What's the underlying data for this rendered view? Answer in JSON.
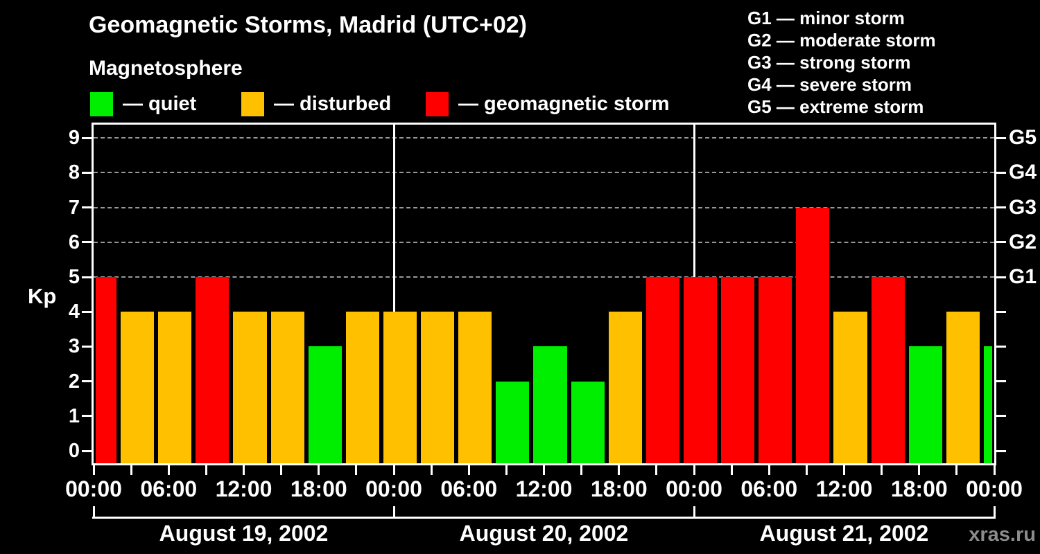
{
  "header": {
    "title": "Geomagnetic Storms, Madrid (UTC+02)",
    "watermark": "xras.ru"
  },
  "legend": {
    "heading": "Magnetosphere",
    "items": [
      {
        "name": "quiet",
        "label": "— quiet",
        "color": "#00ee00"
      },
      {
        "name": "disturbed",
        "label": "— disturbed",
        "color": "#ffc000"
      },
      {
        "name": "storm",
        "label": "— geomagnetic storm",
        "color": "#ff0000"
      }
    ]
  },
  "g_scale_legend": [
    "G1 — minor storm",
    "G2 — moderate storm",
    "G3 — strong storm",
    "G4 — severe storm",
    "G5 — extreme storm"
  ],
  "chart_data": {
    "type": "bar",
    "title": "Geomagnetic Storms, Madrid (UTC+02)",
    "ylabel": "Kp",
    "ylim": [
      0,
      9
    ],
    "yticks": [
      0,
      1,
      2,
      3,
      4,
      5,
      6,
      7,
      8,
      9
    ],
    "grid_kp_levels": [
      5,
      6,
      7,
      8,
      9
    ],
    "grid_style": "dashed",
    "right_axis": {
      "labels": [
        "G1",
        "G2",
        "G3",
        "G4",
        "G5"
      ],
      "kp_levels": [
        5,
        6,
        7,
        8,
        9
      ]
    },
    "x_axis": {
      "hours_span": 72,
      "tick_interval_hours": 3,
      "label_interval_hours": 6,
      "time_labels": [
        "00:00",
        "06:00",
        "12:00",
        "18:00",
        "00:00",
        "06:00",
        "12:00",
        "18:00",
        "00:00",
        "06:00",
        "12:00",
        "18:00",
        "00:00"
      ]
    },
    "days": [
      {
        "label": "August 19, 2002",
        "start_hour": 0
      },
      {
        "label": "August 20, 2002",
        "start_hour": 24
      },
      {
        "label": "August 21, 2002",
        "start_hour": 48
      }
    ],
    "bars": [
      {
        "start_hour": 0,
        "end_hour": 2,
        "kp": 5,
        "status": "storm"
      },
      {
        "start_hour": 2,
        "end_hour": 5,
        "kp": 4,
        "status": "disturbed"
      },
      {
        "start_hour": 5,
        "end_hour": 8,
        "kp": 4,
        "status": "disturbed"
      },
      {
        "start_hour": 8,
        "end_hour": 11,
        "kp": 5,
        "status": "storm"
      },
      {
        "start_hour": 11,
        "end_hour": 14,
        "kp": 4,
        "status": "disturbed"
      },
      {
        "start_hour": 14,
        "end_hour": 17,
        "kp": 4,
        "status": "disturbed"
      },
      {
        "start_hour": 17,
        "end_hour": 20,
        "kp": 3,
        "status": "quiet"
      },
      {
        "start_hour": 20,
        "end_hour": 23,
        "kp": 4,
        "status": "disturbed"
      },
      {
        "start_hour": 23,
        "end_hour": 26,
        "kp": 4,
        "status": "disturbed"
      },
      {
        "start_hour": 26,
        "end_hour": 29,
        "kp": 4,
        "status": "disturbed"
      },
      {
        "start_hour": 29,
        "end_hour": 32,
        "kp": 4,
        "status": "disturbed"
      },
      {
        "start_hour": 32,
        "end_hour": 35,
        "kp": 2,
        "status": "quiet"
      },
      {
        "start_hour": 35,
        "end_hour": 38,
        "kp": 3,
        "status": "quiet"
      },
      {
        "start_hour": 38,
        "end_hour": 41,
        "kp": 2,
        "status": "quiet"
      },
      {
        "start_hour": 41,
        "end_hour": 44,
        "kp": 4,
        "status": "disturbed"
      },
      {
        "start_hour": 44,
        "end_hour": 47,
        "kp": 5,
        "status": "storm"
      },
      {
        "start_hour": 47,
        "end_hour": 50,
        "kp": 5,
        "status": "storm"
      },
      {
        "start_hour": 50,
        "end_hour": 53,
        "kp": 5,
        "status": "storm"
      },
      {
        "start_hour": 53,
        "end_hour": 56,
        "kp": 5,
        "status": "storm"
      },
      {
        "start_hour": 56,
        "end_hour": 59,
        "kp": 7,
        "status": "storm"
      },
      {
        "start_hour": 59,
        "end_hour": 62,
        "kp": 4,
        "status": "disturbed"
      },
      {
        "start_hour": 62,
        "end_hour": 65,
        "kp": 5,
        "status": "storm"
      },
      {
        "start_hour": 65,
        "end_hour": 68,
        "kp": 3,
        "status": "quiet"
      },
      {
        "start_hour": 68,
        "end_hour": 71,
        "kp": 4,
        "status": "disturbed"
      },
      {
        "start_hour": 71,
        "end_hour": 72,
        "kp": 3,
        "status": "quiet"
      }
    ],
    "status_colors": {
      "quiet": "#00ee00",
      "disturbed": "#ffc000",
      "storm": "#ff0000"
    },
    "kp_status_rule": {
      "quiet_max": 3,
      "disturbed": 4,
      "storm_min": 5
    },
    "colors": {
      "background": "#000000",
      "frame": "#ffffff",
      "grid": "#999999",
      "text": "#ffffff",
      "watermark": "#8c8c8c"
    },
    "legend_position": "top"
  }
}
